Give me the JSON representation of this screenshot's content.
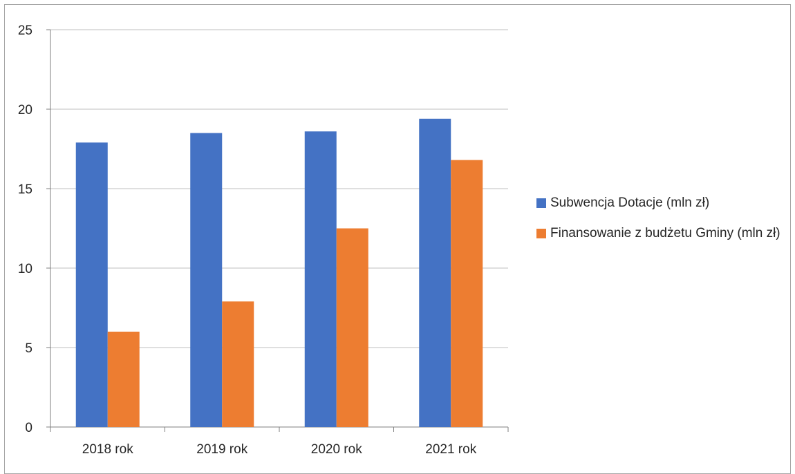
{
  "chart_data": {
    "type": "bar",
    "categories": [
      "2018 rok",
      "2019 rok",
      "2020 rok",
      "2021 rok"
    ],
    "series": [
      {
        "name": "Subwencja Dotacje (mln zł)",
        "color": "#4472c4",
        "values": [
          17.9,
          18.5,
          18.6,
          19.4
        ]
      },
      {
        "name": "Finansowanie z budżetu Gminy (mln zł)",
        "color": "#ed7d31",
        "values": [
          6.0,
          7.9,
          12.5,
          16.8
        ]
      }
    ],
    "yticks": [
      0,
      5,
      10,
      15,
      20,
      25
    ],
    "ylim": [
      0,
      25
    ],
    "grid": true,
    "legend_position": "right",
    "title": "",
    "xlabel": "",
    "ylabel": ""
  }
}
